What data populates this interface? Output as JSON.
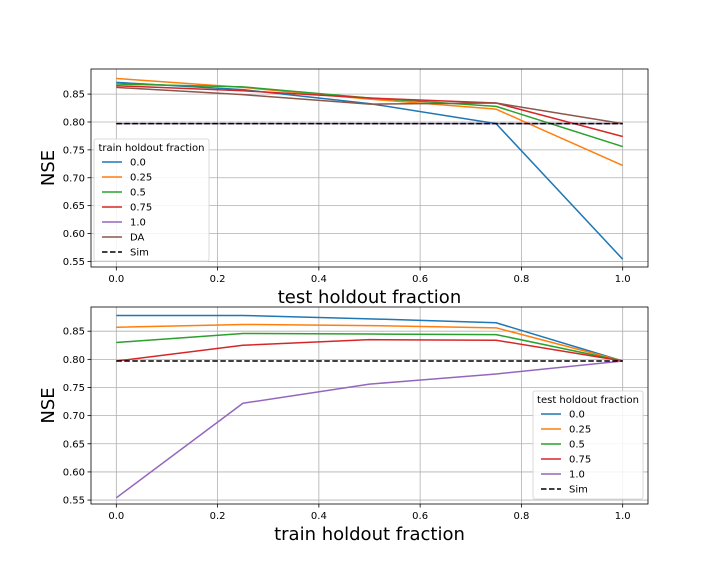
{
  "chart_data": [
    {
      "type": "line",
      "xlabel": "test holdout fraction",
      "ylabel": "NSE",
      "xlim": [
        -0.05,
        1.05
      ],
      "ylim": [
        0.54,
        0.895
      ],
      "xticks": [
        "0.0",
        "0.2",
        "0.4",
        "0.6",
        "0.8",
        "1.0"
      ],
      "yticks": [
        "0.55",
        "0.60",
        "0.65",
        "0.70",
        "0.75",
        "0.80",
        "0.85"
      ],
      "grid": true,
      "legend": {
        "title": "train holdout fraction",
        "placement": "lower-left"
      },
      "x": [
        0.0,
        0.25,
        0.5,
        0.75,
        1.0
      ],
      "series": [
        {
          "name": "0.0",
          "color": "#1f77b4",
          "style": "solid",
          "values": [
            0.871,
            0.858,
            0.833,
            0.797,
            0.554
          ]
        },
        {
          "name": "0.25",
          "color": "#ff7f0e",
          "style": "solid",
          "values": [
            0.878,
            0.862,
            0.841,
            0.823,
            0.722
          ]
        },
        {
          "name": "0.5",
          "color": "#2ca02c",
          "style": "solid",
          "values": [
            0.868,
            0.863,
            0.843,
            0.828,
            0.756
          ]
        },
        {
          "name": "0.75",
          "color": "#d62728",
          "style": "solid",
          "values": [
            0.865,
            0.856,
            0.843,
            0.834,
            0.774
          ]
        },
        {
          "name": "1.0",
          "color": "#9467bd",
          "style": "solid",
          "values": [
            0.797,
            0.797,
            0.797,
            0.797,
            0.797
          ]
        },
        {
          "name": "DA",
          "color": "#8c564b",
          "style": "solid",
          "values": [
            0.862,
            0.849,
            0.832,
            0.834,
            0.797
          ]
        },
        {
          "name": "Sim",
          "color": "#000000",
          "style": "dashed",
          "values": [
            0.797,
            0.797,
            0.797,
            0.797,
            0.797
          ]
        }
      ]
    },
    {
      "type": "line",
      "xlabel": "train holdout fraction",
      "ylabel": "NSE",
      "xlim": [
        -0.05,
        1.05
      ],
      "ylim": [
        0.543,
        0.893
      ],
      "xticks": [
        "0.0",
        "0.2",
        "0.4",
        "0.6",
        "0.8",
        "1.0"
      ],
      "yticks": [
        "0.55",
        "0.60",
        "0.65",
        "0.70",
        "0.75",
        "0.80",
        "0.85"
      ],
      "grid": true,
      "legend": {
        "title": "test holdout fraction",
        "placement": "lower-right"
      },
      "x": [
        0.0,
        0.25,
        0.5,
        0.75,
        1.0
      ],
      "series": [
        {
          "name": "0.0",
          "color": "#1f77b4",
          "style": "solid",
          "values": [
            0.878,
            0.878,
            0.872,
            0.865,
            0.797
          ]
        },
        {
          "name": "0.25",
          "color": "#ff7f0e",
          "style": "solid",
          "values": [
            0.857,
            0.862,
            0.86,
            0.856,
            0.797
          ]
        },
        {
          "name": "0.5",
          "color": "#2ca02c",
          "style": "solid",
          "values": [
            0.83,
            0.846,
            0.845,
            0.844,
            0.797
          ]
        },
        {
          "name": "0.75",
          "color": "#d62728",
          "style": "solid",
          "values": [
            0.797,
            0.825,
            0.835,
            0.834,
            0.797
          ]
        },
        {
          "name": "1.0",
          "color": "#9467bd",
          "style": "solid",
          "values": [
            0.554,
            0.722,
            0.756,
            0.774,
            0.797
          ]
        },
        {
          "name": "Sim",
          "color": "#000000",
          "style": "dashed",
          "values": [
            0.797,
            0.797,
            0.797,
            0.797,
            0.797
          ]
        }
      ]
    }
  ]
}
